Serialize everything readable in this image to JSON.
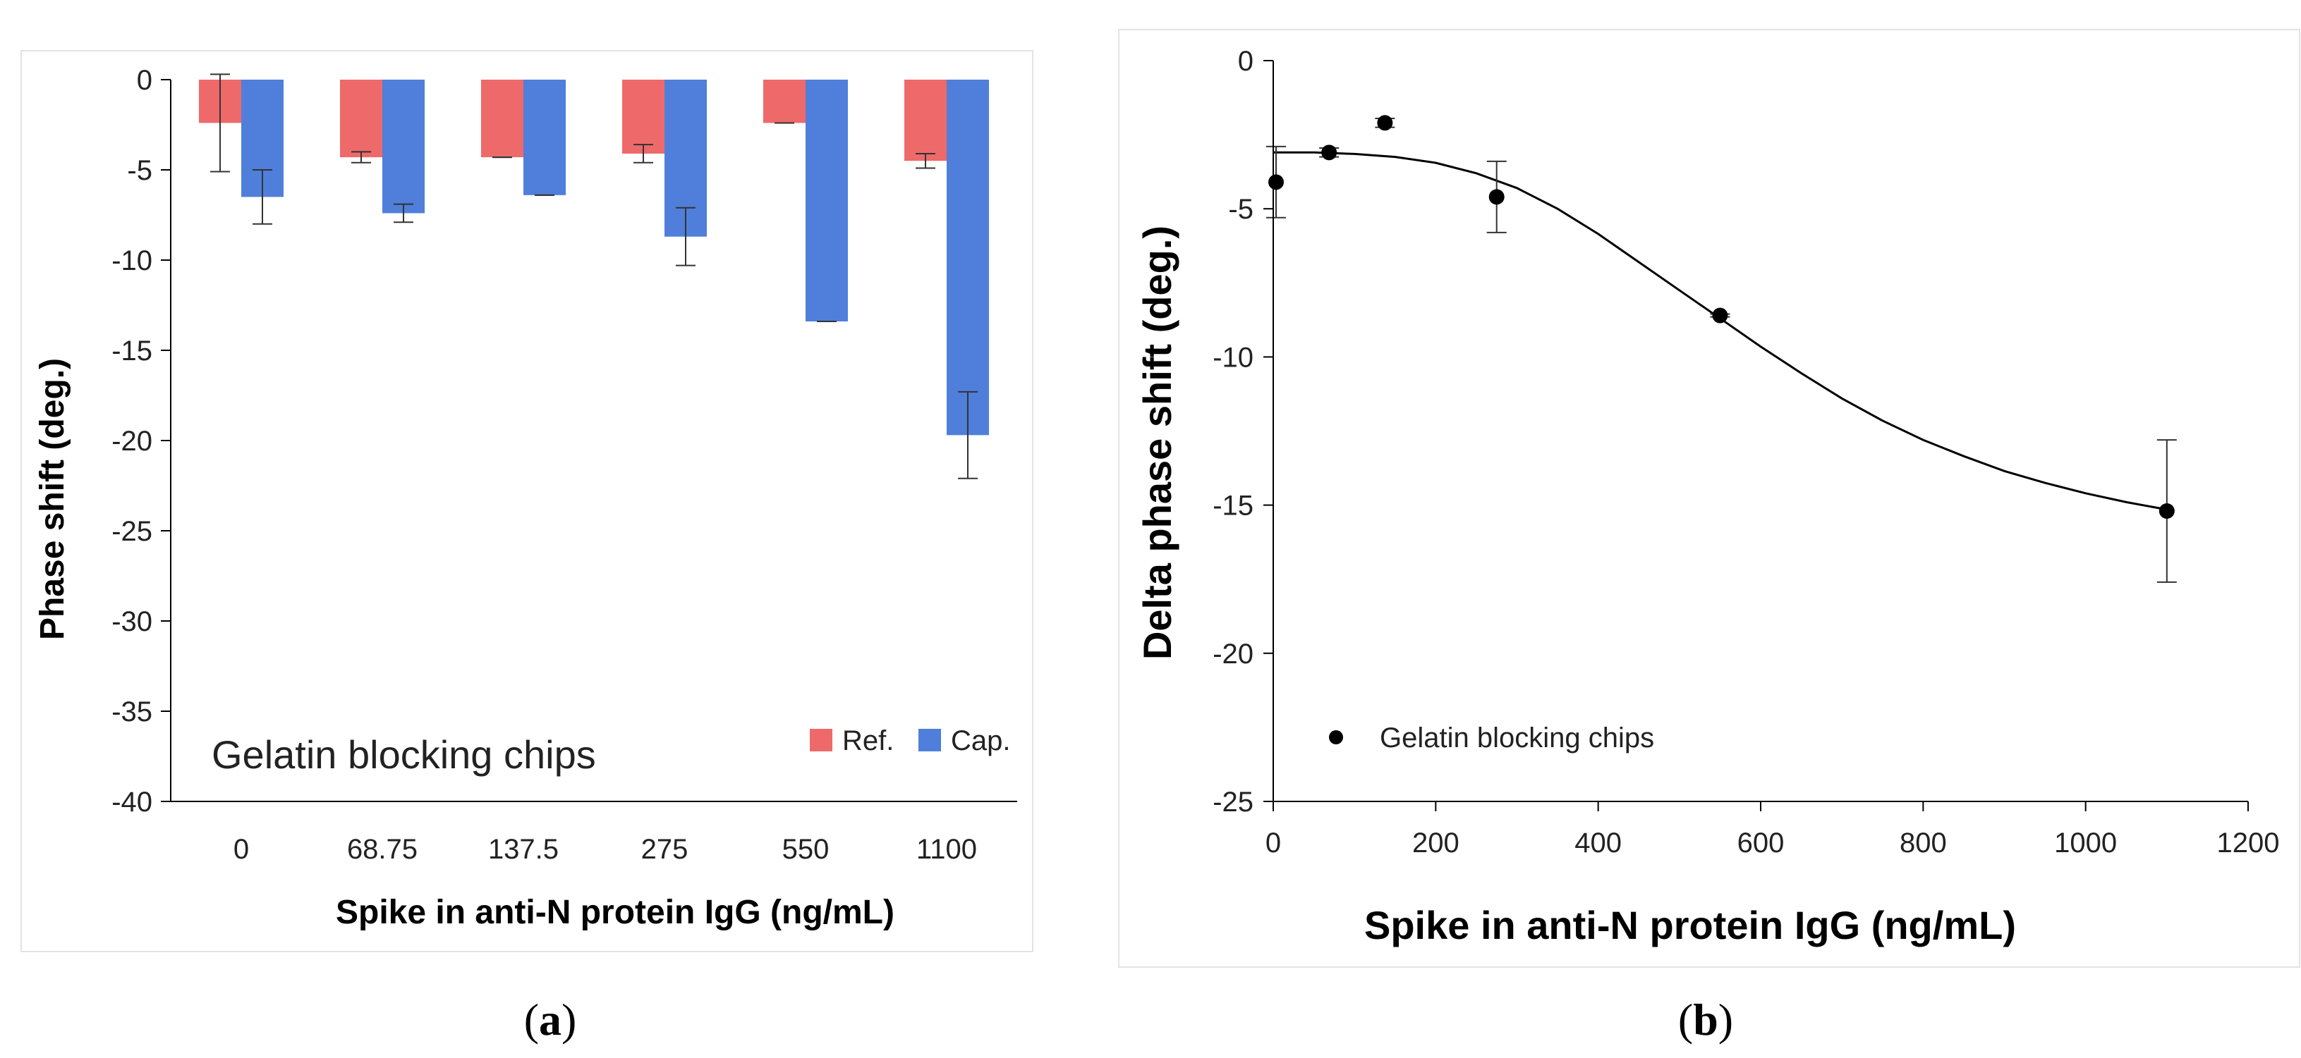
{
  "colors": {
    "ref": "#ee6a6a",
    "cap": "#4f7fda",
    "marker": "#000000",
    "axis": "#000000"
  },
  "chart_data": [
    {
      "panel_label": "a",
      "type": "bar",
      "xlabel": "Spike in anti-N protein IgG (ng/mL)",
      "ylabel": "Phase shift (deg.)",
      "annotation": "Gelatin blocking chips",
      "ylim": [
        -40,
        0
      ],
      "yticks": [
        0,
        -5,
        -10,
        -15,
        -20,
        -25,
        -30,
        -35,
        -40
      ],
      "legend_position": "bottom-right",
      "categories": [
        "0",
        "68.75",
        "137.5",
        "275",
        "550",
        "1100"
      ],
      "series": [
        {
          "name": "Ref.",
          "values": [
            -2.4,
            -4.3,
            -4.3,
            -4.1,
            -2.4,
            -4.5
          ],
          "errors": [
            2.7,
            0.3,
            0.0,
            0.5,
            0.0,
            0.4
          ]
        },
        {
          "name": "Cap.",
          "values": [
            -6.5,
            -7.4,
            -6.4,
            -8.7,
            -13.4,
            -19.7
          ],
          "errors": [
            1.5,
            0.5,
            0.0,
            1.6,
            0.0,
            2.4
          ]
        }
      ]
    },
    {
      "panel_label": "b",
      "type": "scatter",
      "xlabel": "Spike in anti-N protein IgG (ng/mL)",
      "ylabel": "Delta phase shift (deg.)",
      "xlim": [
        0,
        1200
      ],
      "ylim": [
        -25,
        0
      ],
      "xticks": [
        0,
        200,
        400,
        600,
        800,
        1000,
        1200
      ],
      "yticks": [
        0,
        -5,
        -10,
        -15,
        -20,
        -25
      ],
      "legend_position": "bottom-left",
      "series": [
        {
          "name": "Gelatin blocking chips",
          "x": [
            0,
            68.75,
            137.5,
            275,
            550,
            1100
          ],
          "y": [
            -4.1,
            -3.1,
            -2.1,
            -4.6,
            -8.6,
            -15.2
          ],
          "errors": [
            1.2,
            0.15,
            0.15,
            1.2,
            0.05,
            2.4
          ]
        }
      ],
      "fit_curve": {
        "x": [
          0,
          50,
          100,
          150,
          200,
          250,
          300,
          350,
          400,
          450,
          500,
          550,
          600,
          650,
          700,
          750,
          800,
          850,
          900,
          950,
          1000,
          1050,
          1100
        ],
        "y": [
          -3.1,
          -3.1,
          -3.15,
          -3.25,
          -3.45,
          -3.8,
          -4.3,
          -5.0,
          -5.85,
          -6.8,
          -7.75,
          -8.7,
          -9.65,
          -10.55,
          -11.4,
          -12.15,
          -12.8,
          -13.35,
          -13.85,
          -14.25,
          -14.6,
          -14.9,
          -15.15
        ]
      }
    }
  ]
}
